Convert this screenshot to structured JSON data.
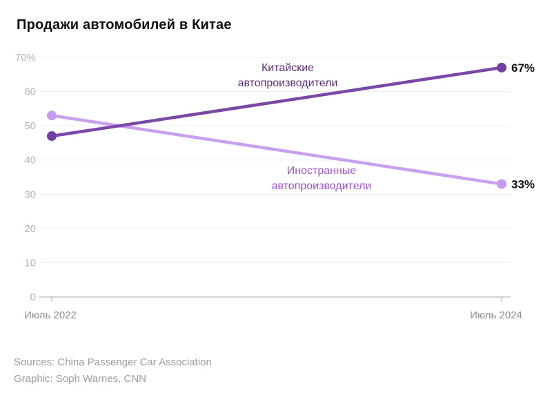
{
  "title": "Продажи автомобилей в Китае",
  "chart_data": {
    "type": "line",
    "x": [
      "Июль 2022",
      "Июль 2024"
    ],
    "series": [
      {
        "name": "Иностранные автопроизводители",
        "values": [
          53,
          33
        ],
        "line_color": "#c9a0ef",
        "dot_color": "#c59af0",
        "label_lines": [
          "Иностранные",
          "автопроизводители"
        ],
        "label_color": "#a44fd3",
        "end_label": "33%"
      },
      {
        "name": "Китайские автопроизводители",
        "values": [
          47,
          67
        ],
        "line_color": "#7a49a7",
        "dot_color": "#7040a2",
        "label_lines": [
          "Китайские",
          "автопроизводители"
        ],
        "label_color": "#5f2a7f",
        "end_label": "67%"
      }
    ],
    "ylim": [
      0,
      70
    ],
    "ytick_step": 10,
    "ytick_labels": [
      "0",
      "10",
      "20",
      "30",
      "40",
      "50",
      "60",
      "70%"
    ],
    "grid": true,
    "legend_position": "inline-annotations",
    "title": "Продажи автомобилей в Китае",
    "xlabel": "",
    "ylabel": ""
  },
  "footer": {
    "sources": "Sources: China Passenger Car Association",
    "credit": "Graphic: Soph Warnes, CNN"
  },
  "colors": {
    "gridline": "#ececec",
    "zero_line": "#a9a9a9",
    "ytick_text": "#b3b3b3",
    "xtick_text": "#8e8e8e",
    "value_label": "#141414",
    "title_text": "#0f0f0f",
    "footer_text": "#9b9b9b"
  }
}
